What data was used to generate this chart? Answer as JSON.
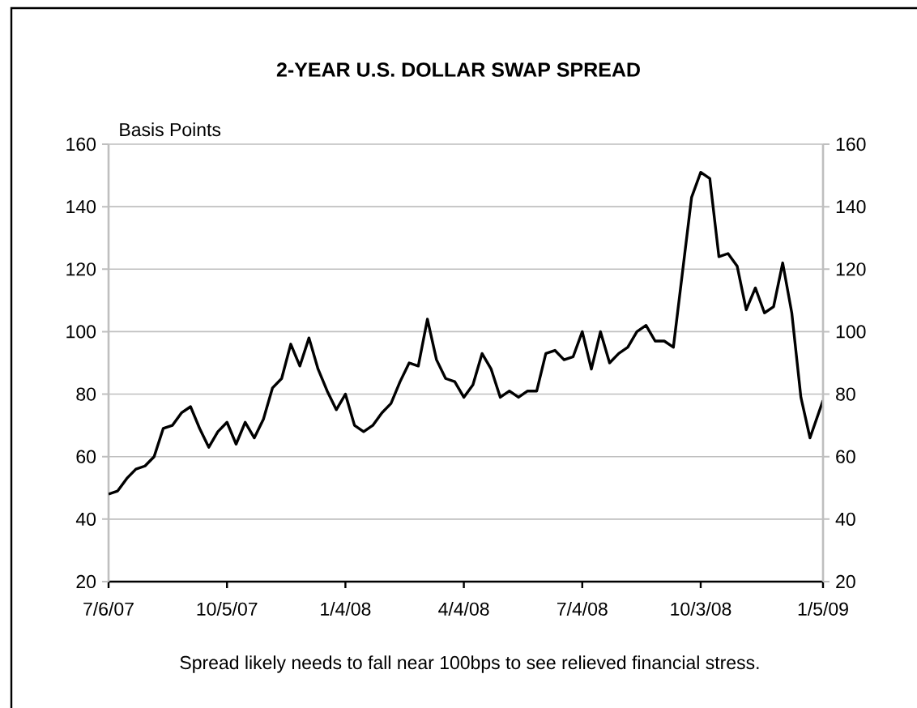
{
  "chart_data": {
    "type": "line",
    "title": "2-YEAR U.S. DOLLAR SWAP SPREAD",
    "ylabel": "Basis Points",
    "annotations": [
      "Spread likely needs to fall near 100bps to see relieved financial stress."
    ],
    "x": [
      "2007-07-06",
      "2007-07-13",
      "2007-07-20",
      "2007-07-27",
      "2007-08-03",
      "2007-08-10",
      "2007-08-17",
      "2007-08-24",
      "2007-08-31",
      "2007-09-07",
      "2007-09-14",
      "2007-09-21",
      "2007-09-28",
      "2007-10-05",
      "2007-10-12",
      "2007-10-19",
      "2007-10-26",
      "2007-11-02",
      "2007-11-09",
      "2007-11-16",
      "2007-11-23",
      "2007-11-30",
      "2007-12-07",
      "2007-12-14",
      "2007-12-21",
      "2007-12-28",
      "2008-01-04",
      "2008-01-11",
      "2008-01-18",
      "2008-01-25",
      "2008-02-01",
      "2008-02-08",
      "2008-02-15",
      "2008-02-22",
      "2008-02-29",
      "2008-03-07",
      "2008-03-14",
      "2008-03-21",
      "2008-03-28",
      "2008-04-04",
      "2008-04-11",
      "2008-04-18",
      "2008-04-25",
      "2008-05-02",
      "2008-05-09",
      "2008-05-16",
      "2008-05-23",
      "2008-05-30",
      "2008-06-06",
      "2008-06-13",
      "2008-06-20",
      "2008-06-27",
      "2008-07-04",
      "2008-07-11",
      "2008-07-18",
      "2008-07-25",
      "2008-08-01",
      "2008-08-08",
      "2008-08-15",
      "2008-08-22",
      "2008-08-29",
      "2008-09-05",
      "2008-09-12",
      "2008-09-19",
      "2008-09-26",
      "2008-10-03",
      "2008-10-10",
      "2008-10-17",
      "2008-10-24",
      "2008-10-31",
      "2008-11-07",
      "2008-11-14",
      "2008-11-21",
      "2008-11-28",
      "2008-12-05",
      "2008-12-12",
      "2008-12-19",
      "2008-12-26",
      "2009-01-05"
    ],
    "series": [
      {
        "color": "#000000",
        "values": [
          48,
          49,
          53,
          56,
          57,
          60,
          69,
          70,
          74,
          76,
          69,
          63,
          68,
          71,
          64,
          71,
          66,
          72,
          82,
          85,
          96,
          89,
          98,
          88,
          81,
          75,
          80,
          70,
          68,
          70,
          74,
          77,
          84,
          90,
          89,
          104,
          91,
          85,
          84,
          79,
          83,
          93,
          88,
          79,
          81,
          79,
          81,
          81,
          93,
          94,
          91,
          92,
          100,
          88,
          100,
          90,
          93,
          95,
          100,
          102,
          97,
          97,
          95,
          119,
          143,
          151,
          149,
          124,
          125,
          121,
          107,
          114,
          106,
          108,
          122,
          106,
          79,
          66,
          78
        ]
      }
    ],
    "xlim": [
      "2007-07-06",
      "2009-01-05"
    ],
    "xticks": [
      {
        "value": "2007-07-06",
        "label": "7/6/07"
      },
      {
        "value": "2007-10-05",
        "label": "10/5/07"
      },
      {
        "value": "2008-01-04",
        "label": "1/4/08"
      },
      {
        "value": "2008-04-04",
        "label": "4/4/08"
      },
      {
        "value": "2008-07-04",
        "label": "7/4/08"
      },
      {
        "value": "2008-10-03",
        "label": "10/3/08"
      },
      {
        "value": "2009-01-05",
        "label": "1/5/09"
      }
    ],
    "ylim": [
      20,
      160
    ],
    "yticks": [
      20,
      40,
      60,
      80,
      100,
      120,
      140,
      160
    ],
    "y2lim": [
      20,
      160
    ],
    "y2ticks": [
      20,
      40,
      60,
      80,
      100,
      120,
      140,
      160
    ],
    "grid": "y"
  }
}
